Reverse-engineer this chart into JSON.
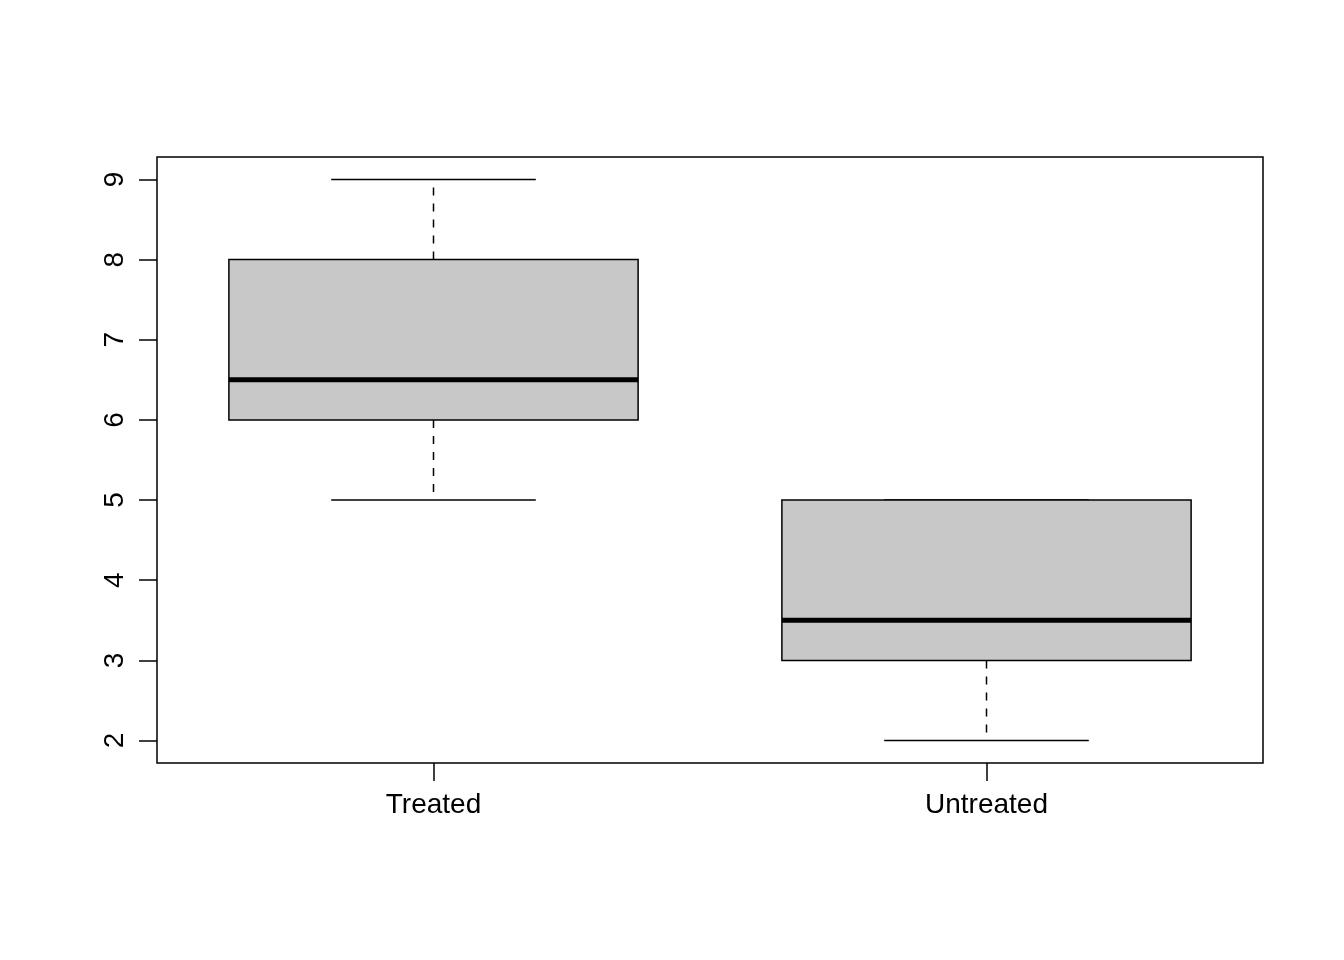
{
  "chart_data": {
    "type": "box",
    "categories": [
      "Treated",
      "Untreated"
    ],
    "boxes": [
      {
        "low": 5,
        "q1": 6,
        "median": 6.5,
        "q3": 8,
        "high": 9
      },
      {
        "low": 2,
        "q1": 3,
        "median": 3.5,
        "q3": 5,
        "high": 5
      }
    ],
    "color": "#c8c8c8",
    "ylim": [
      1.72,
      9.28
    ],
    "yticks": [
      2,
      3,
      4,
      5,
      6,
      7,
      8,
      9
    ],
    "grid": false
  }
}
